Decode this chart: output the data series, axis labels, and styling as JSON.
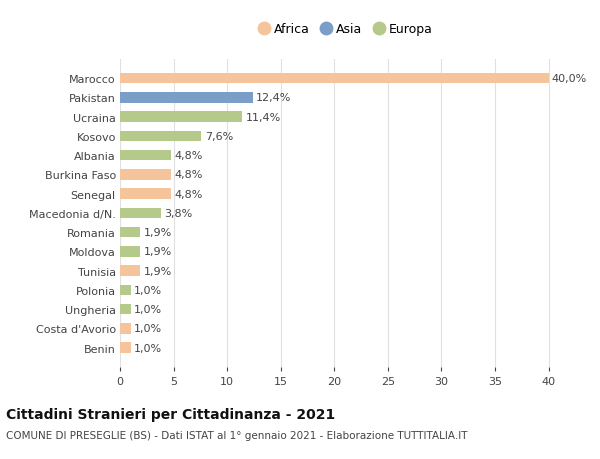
{
  "countries": [
    "Marocco",
    "Pakistan",
    "Ucraina",
    "Kosovo",
    "Albania",
    "Burkina Faso",
    "Senegal",
    "Macedonia d/N.",
    "Romania",
    "Moldova",
    "Tunisia",
    "Polonia",
    "Ungheria",
    "Costa d'Avorio",
    "Benin"
  ],
  "values": [
    40.0,
    12.4,
    11.4,
    7.6,
    4.8,
    4.8,
    4.8,
    3.8,
    1.9,
    1.9,
    1.9,
    1.0,
    1.0,
    1.0,
    1.0
  ],
  "labels": [
    "40,0%",
    "12,4%",
    "11,4%",
    "7,6%",
    "4,8%",
    "4,8%",
    "4,8%",
    "3,8%",
    "1,9%",
    "1,9%",
    "1,9%",
    "1,0%",
    "1,0%",
    "1,0%",
    "1,0%"
  ],
  "continents": [
    "Africa",
    "Asia",
    "Europa",
    "Europa",
    "Europa",
    "Africa",
    "Africa",
    "Europa",
    "Europa",
    "Europa",
    "Africa",
    "Europa",
    "Europa",
    "Africa",
    "Africa"
  ],
  "colors": {
    "Africa": "#F5C49A",
    "Asia": "#7B9EC9",
    "Europa": "#B5C98A"
  },
  "xlim": [
    0,
    42
  ],
  "xticks": [
    0,
    5,
    10,
    15,
    20,
    25,
    30,
    35,
    40
  ],
  "title": "Cittadini Stranieri per Cittadinanza - 2021",
  "subtitle": "COMUNE DI PRESEGLIE (BS) - Dati ISTAT al 1° gennaio 2021 - Elaborazione TUTTITALIA.IT",
  "bg_color": "#ffffff",
  "grid_color": "#e0e0e0",
  "bar_height": 0.55,
  "label_fontsize": 8,
  "ytick_fontsize": 8,
  "xtick_fontsize": 8,
  "legend_fontsize": 9,
  "title_fontsize": 10,
  "subtitle_fontsize": 7.5
}
